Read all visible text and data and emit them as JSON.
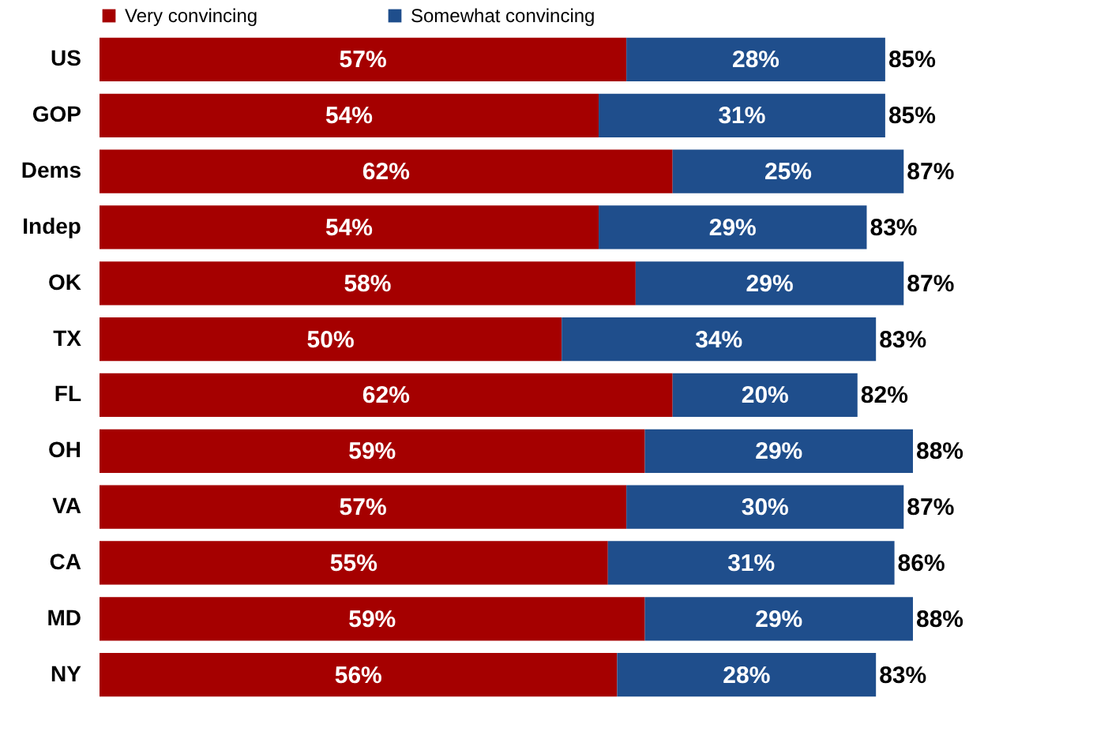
{
  "chart_data": {
    "type": "bar",
    "orientation": "horizontal",
    "stacked": true,
    "data_labels": true,
    "legend": "top left",
    "categories": [
      "US",
      "GOP",
      "Dems",
      "Indep",
      "OK",
      "TX",
      "FL",
      "OH",
      "VA",
      "CA",
      "MD",
      "NY"
    ],
    "series": [
      {
        "name": "Very convincing",
        "color": "#a50000",
        "values": [
          57,
          54,
          62,
          54,
          58,
          50,
          62,
          59,
          57,
          55,
          59,
          56
        ],
        "value_labels": [
          "57%",
          "54%",
          "62%",
          "54%",
          "58%",
          "50%",
          "62%",
          "59%",
          "57%",
          "55%",
          "59%",
          "56%"
        ]
      },
      {
        "name": "Somewhat convincing",
        "color": "#1f4e8c",
        "values": [
          28,
          31,
          25,
          29,
          29,
          34,
          20,
          29,
          30,
          31,
          29,
          28
        ],
        "value_labels": [
          "28%",
          "31%",
          "25%",
          "29%",
          "29%",
          "34%",
          "20%",
          "29%",
          "30%",
          "31%",
          "29%",
          "28%"
        ]
      }
    ],
    "totals": [
      "85%",
      "85%",
      "87%",
      "83%",
      "87%",
      "83%",
      "82%",
      "88%",
      "87%",
      "86%",
      "88%",
      "83%"
    ]
  }
}
